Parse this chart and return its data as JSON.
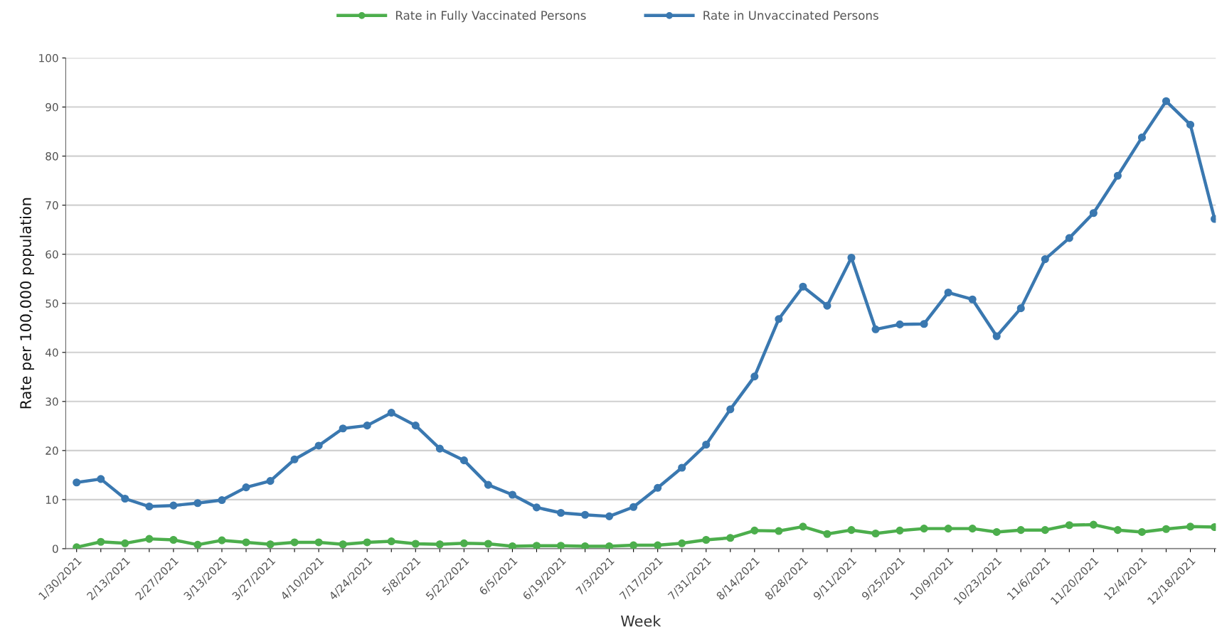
{
  "chart_data": {
    "type": "line",
    "xlabel": "Week",
    "ylabel": "Rate per 100,000 population",
    "categories": [
      "1/30/2021",
      null,
      "2/13/2021",
      null,
      "2/27/2021",
      null,
      "3/13/2021",
      null,
      "3/27/2021",
      null,
      "4/10/2021",
      null,
      "4/24/2021",
      null,
      "5/8/2021",
      null,
      "5/22/2021",
      null,
      "6/5/2021",
      null,
      "6/19/2021",
      null,
      "7/3/2021",
      null,
      "7/17/2021",
      null,
      "7/31/2021",
      null,
      "8/14/2021",
      null,
      "8/28/2021",
      null,
      "9/11/2021",
      null,
      "9/25/2021",
      null,
      "10/9/2021",
      null,
      "10/23/2021",
      null,
      "11/6/2021",
      null,
      "11/20/2021",
      null,
      "12/4/2021",
      null,
      "12/18/2021",
      null
    ],
    "series": [
      {
        "name": "Rate in Fully Vaccinated Persons",
        "color": "#4cae4c",
        "values": [
          0.3,
          1.4,
          1.1,
          2.0,
          1.8,
          0.8,
          1.7,
          1.3,
          0.9,
          1.3,
          1.3,
          0.9,
          1.3,
          1.5,
          1.0,
          0.9,
          1.1,
          1.0,
          0.5,
          0.6,
          0.6,
          0.5,
          0.5,
          0.7,
          0.7,
          1.1,
          1.8,
          2.2,
          3.7,
          3.6,
          4.5,
          3.0,
          3.8,
          3.1,
          3.7,
          4.1,
          4.1,
          4.1,
          3.4,
          3.8,
          3.8,
          4.8,
          4.9,
          3.8,
          3.4,
          4.0,
          4.5,
          4.4
        ]
      },
      {
        "name": "Rate in Unvaccinated Persons",
        "color": "#3a78b0",
        "values": [
          13.5,
          14.2,
          10.2,
          8.6,
          8.8,
          9.3,
          9.9,
          12.5,
          13.8,
          18.2,
          21.0,
          24.5,
          25.1,
          27.7,
          25.1,
          20.4,
          18.0,
          13.0,
          11.0,
          8.4,
          7.3,
          6.9,
          6.6,
          8.5,
          12.4,
          16.5,
          21.2,
          28.4,
          35.1,
          46.8,
          53.4,
          49.5,
          59.3,
          44.7,
          45.7,
          45.8,
          52.2,
          50.8,
          43.3,
          49.0,
          59.0,
          63.3,
          68.4,
          76.0,
          83.8,
          91.2,
          86.4,
          67.2
        ]
      }
    ],
    "ylim": [
      0,
      100
    ],
    "yticks": [
      0,
      10,
      20,
      30,
      40,
      50,
      60,
      70,
      80,
      90,
      100
    ],
    "grid": "y",
    "legend": "top",
    "marker": "circle",
    "line_style": "solid"
  }
}
